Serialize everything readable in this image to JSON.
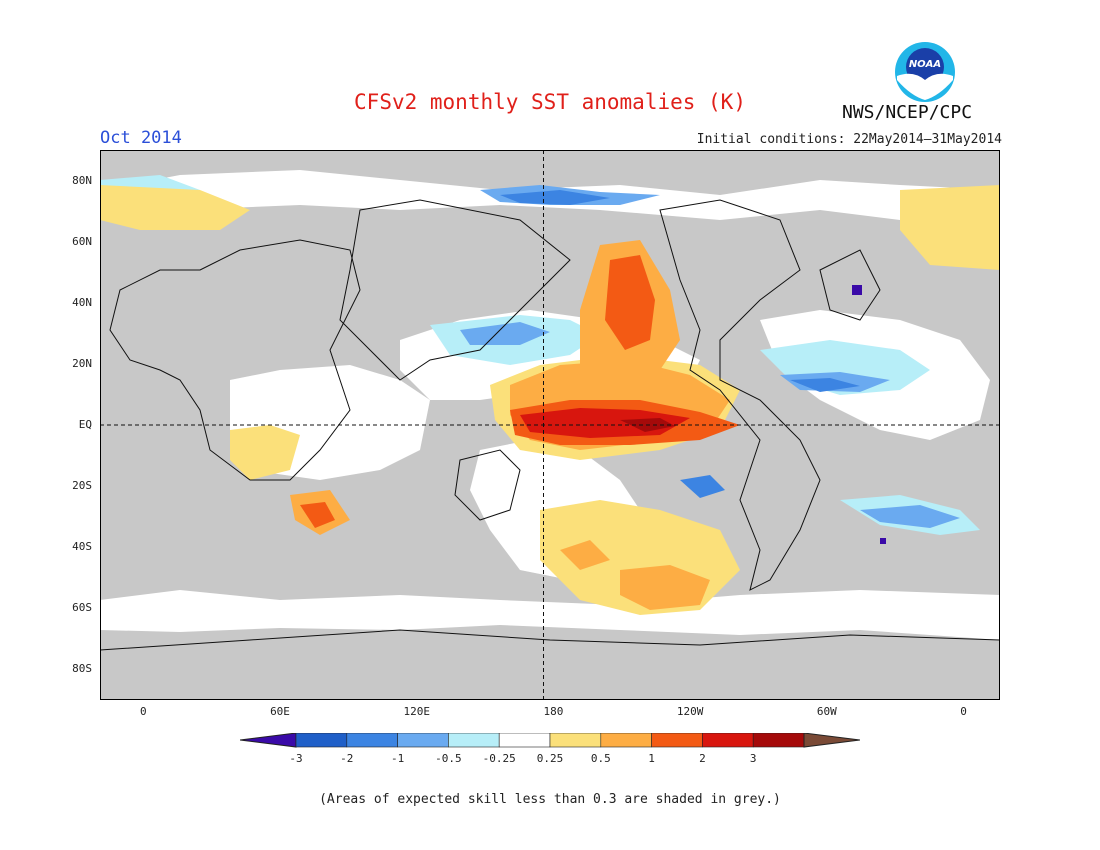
{
  "title": "CFSv2 monthly SST anomalies (K)",
  "valid_month": "Oct 2014",
  "initial_conditions": "Initial conditions: 22May2014–31May2014",
  "agency": "NWS/NCEP/CPC",
  "logo_icon": "noaa-logo-icon",
  "logo_text": "NOAA",
  "lat_labels": [
    "80N",
    "60N",
    "40N",
    "20N",
    "EQ",
    "20S",
    "40S",
    "60S",
    "80S"
  ],
  "lat_values": [
    80,
    60,
    40,
    20,
    0,
    -20,
    -40,
    -60,
    -80
  ],
  "lon_labels": [
    "0",
    "60E",
    "120E",
    "180",
    "120W",
    "60W",
    "0"
  ],
  "lon_values": [
    0,
    60,
    120,
    180,
    240,
    300,
    360
  ],
  "colorbar": {
    "levels": [
      "-3",
      "-2",
      "-1",
      "-0.5",
      "-0.25",
      "0.25",
      "0.5",
      "1",
      "2",
      "3"
    ],
    "colors": [
      "#3a0aa8",
      "#1f5fc8",
      "#3c84e2",
      "#6aaaf0",
      "#b7eef8",
      "#ffffff",
      "#fbe07a",
      "#fdad44",
      "#f35a14",
      "#d8160e",
      "#a50a0a",
      "#7a4a36"
    ]
  },
  "colors": {
    "land_and_low_skill": "#c8c8c8",
    "title": "#e0201a",
    "valid_month": "#2b4fd8"
  },
  "footnote": "(Areas of expected skill less than 0.3 are shaded in grey.)"
}
